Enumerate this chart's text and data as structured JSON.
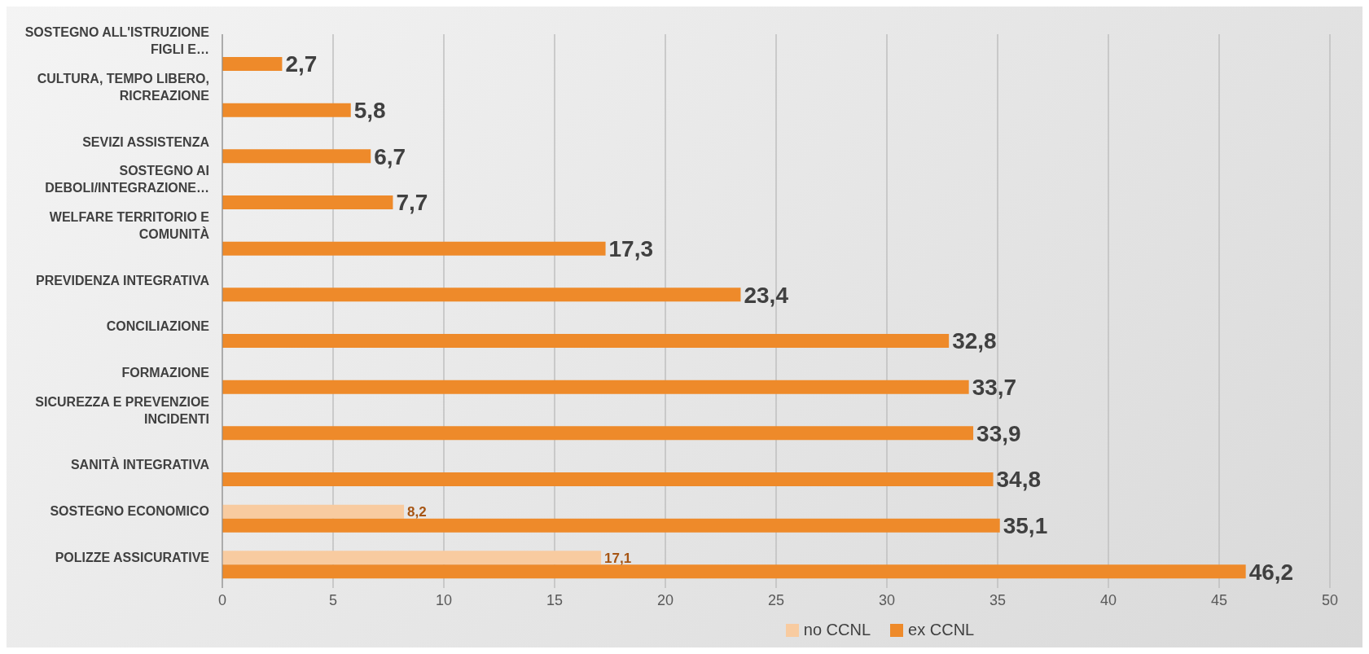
{
  "chart_data": {
    "type": "bar",
    "orientation": "horizontal",
    "categories": [
      "SOSTEGNO ALL'ISTRUZIONE FIGLI E…",
      "CULTURA, TEMPO LIBERO, RICREAZIONE",
      "SEVIZI ASSISTENZA",
      "SOSTEGNO AI DEBOLI/INTEGRAZIONE…",
      "WELFARE TERRITORIO E COMUNITÀ",
      "PREVIDENZA INTEGRATIVA",
      "CONCILIAZIONE",
      "FORMAZIONE",
      "SICUREZZA E PREVENZIOE INCIDENTI",
      "SANITÀ INTEGRATIVA",
      "SOSTEGNO ECONOMICO",
      "POLIZZE ASSICURATIVE"
    ],
    "series": [
      {
        "name": "no CCNL",
        "color": "#f8cba0",
        "values": [
          null,
          null,
          null,
          null,
          null,
          null,
          null,
          null,
          null,
          null,
          8.2,
          17.1
        ],
        "value_labels": [
          null,
          null,
          null,
          null,
          null,
          null,
          null,
          null,
          null,
          null,
          "8,2",
          "17,1"
        ]
      },
      {
        "name": "ex CCNL",
        "color": "#ee8a2a",
        "values": [
          2.7,
          5.8,
          6.7,
          7.7,
          17.3,
          23.4,
          32.8,
          33.7,
          33.9,
          34.8,
          35.1,
          46.2
        ],
        "value_labels": [
          "2,7",
          "5,8",
          "6,7",
          "7,7",
          "17,3",
          "23,4",
          "32,8",
          "33,7",
          "33,9",
          "34,8",
          "35,1",
          "46,2"
        ]
      }
    ],
    "xlim": [
      0,
      50
    ],
    "xticks": [
      0,
      5,
      10,
      15,
      20,
      25,
      30,
      35,
      40,
      45,
      50
    ],
    "grid": "x",
    "legend": "bottom"
  }
}
